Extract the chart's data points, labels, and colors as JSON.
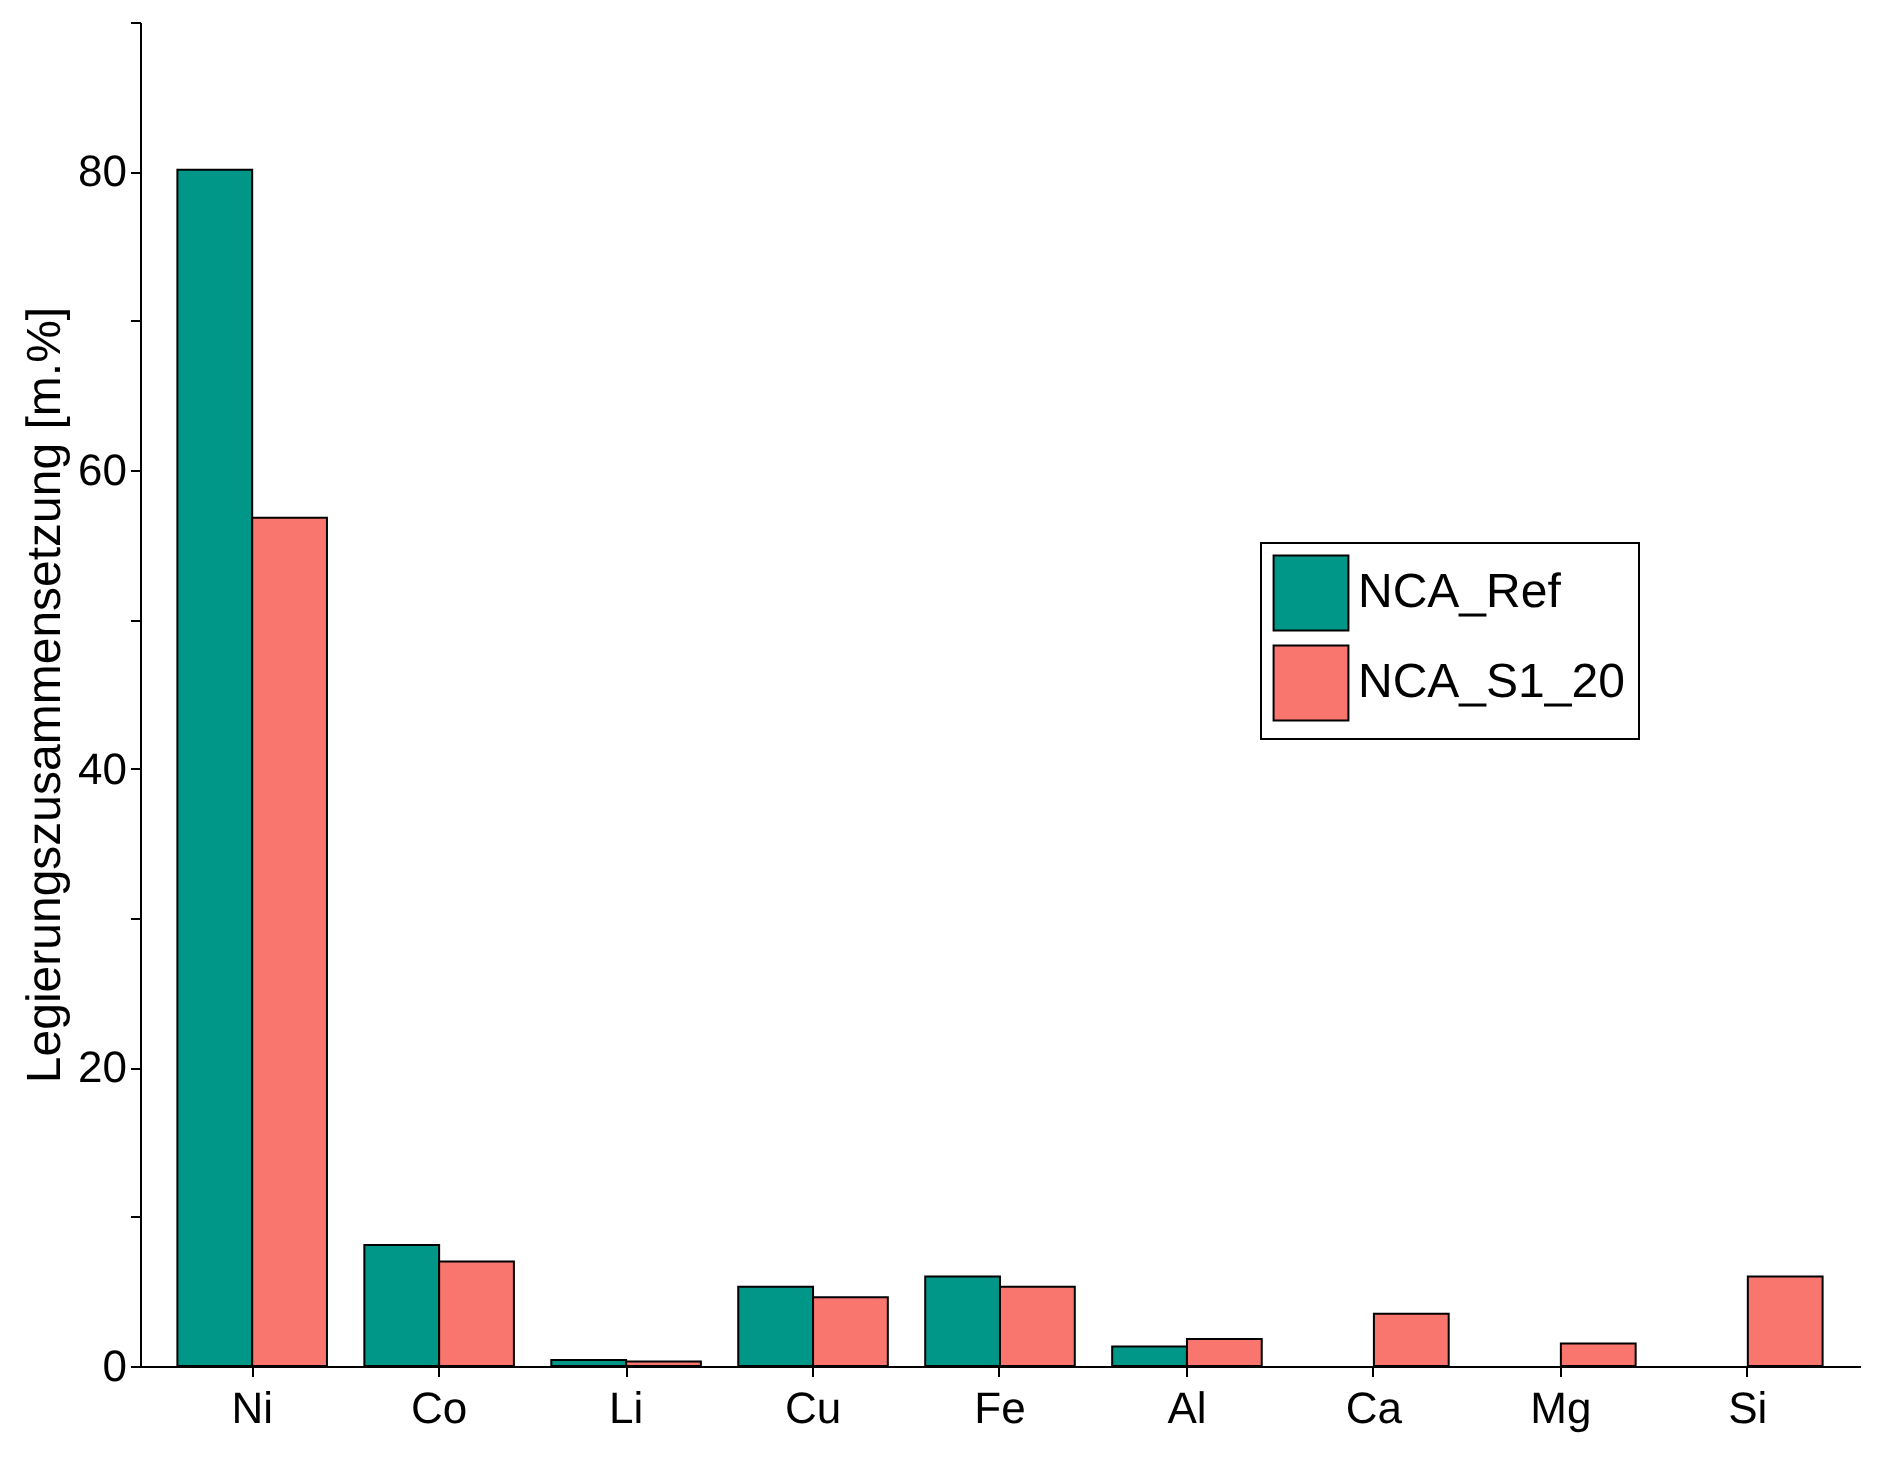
{
  "chart_data": {
    "type": "bar",
    "ylabel": "Legierungszusammensetzung [m.%]",
    "categories": [
      "Ni",
      "Co",
      "Li",
      "Cu",
      "Fe",
      "Al",
      "Ca",
      "Mg",
      "Si"
    ],
    "series": [
      {
        "name": "NCA_Ref",
        "color": "#009688",
        "values": [
          80.1,
          8.1,
          0.4,
          5.3,
          6.0,
          1.3,
          null,
          null,
          null
        ]
      },
      {
        "name": "NCA_S1_20",
        "color": "#f8766d",
        "values": [
          56.8,
          7.0,
          0.3,
          4.6,
          5.3,
          1.8,
          3.5,
          1.5,
          6.0
        ]
      }
    ],
    "ylim": [
      0,
      90
    ],
    "yticks": [
      0,
      {
        "value": 10,
        "label": null
      },
      20,
      {
        "value": 30,
        "label": null
      },
      40,
      {
        "value": 50,
        "label": null
      },
      60,
      {
        "value": 70,
        "label": null
      },
      80,
      {
        "value": 90,
        "label": null
      }
    ],
    "grid": false,
    "legend": "right"
  }
}
